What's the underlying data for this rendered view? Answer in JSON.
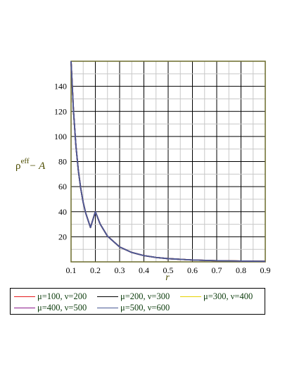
{
  "chart_data": {
    "type": "line",
    "title": "",
    "xlabel": "r",
    "ylabel_main": "ρ",
    "ylabel_sup": "eff",
    "ylabel_tail": "− A",
    "xlim": [
      0.1,
      0.9
    ],
    "ylim": [
      0,
      160
    ],
    "xticks": [
      "0.1",
      "0.2",
      "0.3",
      "0.4",
      "0.5",
      "0.6",
      "0.7",
      "0.8",
      "0.9"
    ],
    "yticks": [
      "20",
      "40",
      "60",
      "80",
      "100",
      "120",
      "140"
    ],
    "grid": true,
    "legend_position": "bottom",
    "x": [
      0.1,
      0.11,
      0.12,
      0.13,
      0.14,
      0.15,
      0.16,
      0.18,
      0.2,
      0.22,
      0.25,
      0.3,
      0.35,
      0.4,
      0.45,
      0.5,
      0.6,
      0.7,
      0.8,
      0.9
    ],
    "series": [
      {
        "name": "μ=100, ν=200",
        "color": "#e41a1c",
        "values": [
          160,
          120.2,
          92.6,
          72.8,
          58.3,
          47.4,
          39.1,
          27.4,
          40,
          30.1,
          20.5,
          11.9,
          7.5,
          5.0,
          3.5,
          2.56,
          1.48,
          0.93,
          0.63,
          0.44
        ]
      },
      {
        "name": "μ=200, ν=300",
        "color": "#000000",
        "values": [
          160,
          120.2,
          92.6,
          72.8,
          58.3,
          47.4,
          39.1,
          27.4,
          40,
          30.1,
          20.5,
          11.9,
          7.5,
          5.0,
          3.5,
          2.56,
          1.48,
          0.93,
          0.63,
          0.44
        ]
      },
      {
        "name": "μ=300, ν=400",
        "color": "#e6d200",
        "values": [
          160,
          120.2,
          92.6,
          72.8,
          58.3,
          47.4,
          39.1,
          27.4,
          40,
          30.1,
          20.5,
          11.9,
          7.5,
          5.0,
          3.5,
          2.56,
          1.48,
          0.93,
          0.63,
          0.44
        ]
      },
      {
        "name": "μ=400, ν=500",
        "color": "#8b1a8b",
        "values": [
          160,
          120.2,
          92.6,
          72.8,
          58.3,
          47.4,
          39.1,
          27.4,
          40,
          30.1,
          20.5,
          11.9,
          7.5,
          5.0,
          3.5,
          2.56,
          1.48,
          0.93,
          0.63,
          0.44
        ]
      },
      {
        "name": "μ=500, ν=600",
        "color": "#4a5a96",
        "values": [
          160,
          120.2,
          92.6,
          72.8,
          58.3,
          47.4,
          39.1,
          27.4,
          40,
          30.1,
          20.5,
          11.9,
          7.5,
          5.0,
          3.5,
          2.56,
          1.48,
          0.93,
          0.63,
          0.44
        ]
      }
    ]
  }
}
